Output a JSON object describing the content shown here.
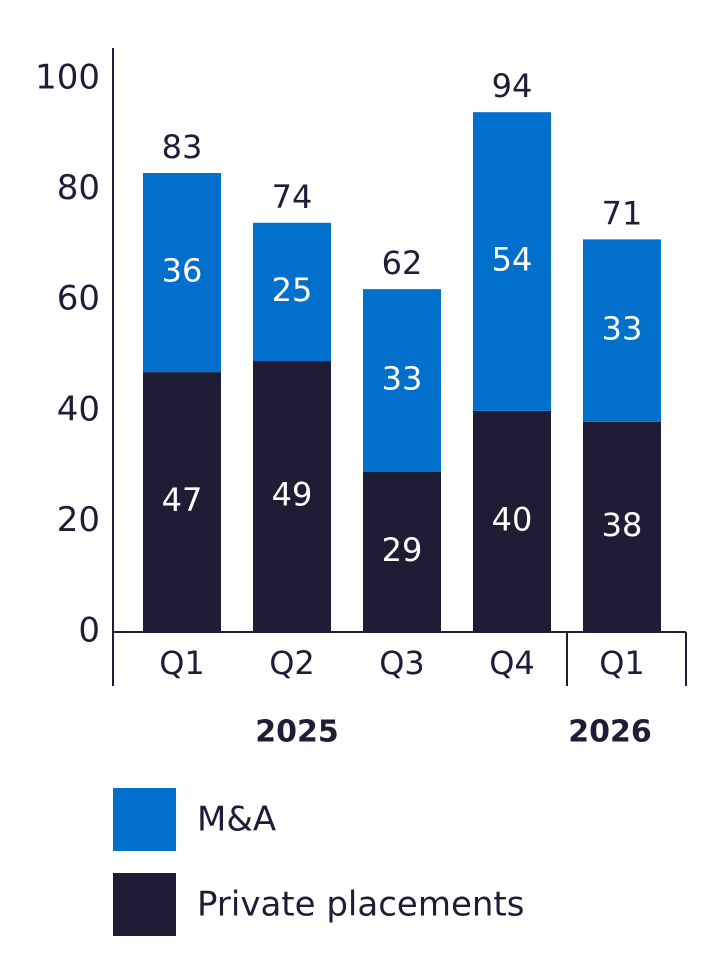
{
  "chart_data": {
    "type": "stacked_bar",
    "groups": [
      {
        "label": "2025",
        "categories": [
          "Q1",
          "Q2",
          "Q3",
          "Q4"
        ]
      },
      {
        "label": "2026",
        "categories": [
          "Q1"
        ]
      }
    ],
    "series": [
      {
        "name": "Private placements",
        "color": "#1f1d36",
        "values": [
          47,
          49,
          29,
          40,
          38
        ]
      },
      {
        "name": "M&A",
        "color": "#0070cc",
        "values": [
          36,
          25,
          33,
          54,
          33
        ]
      }
    ],
    "totals": [
      83,
      74,
      62,
      94,
      71
    ],
    "ylim": [
      0,
      100
    ],
    "yticks": [
      0,
      20,
      40,
      60,
      80,
      100
    ],
    "grid": false
  }
}
